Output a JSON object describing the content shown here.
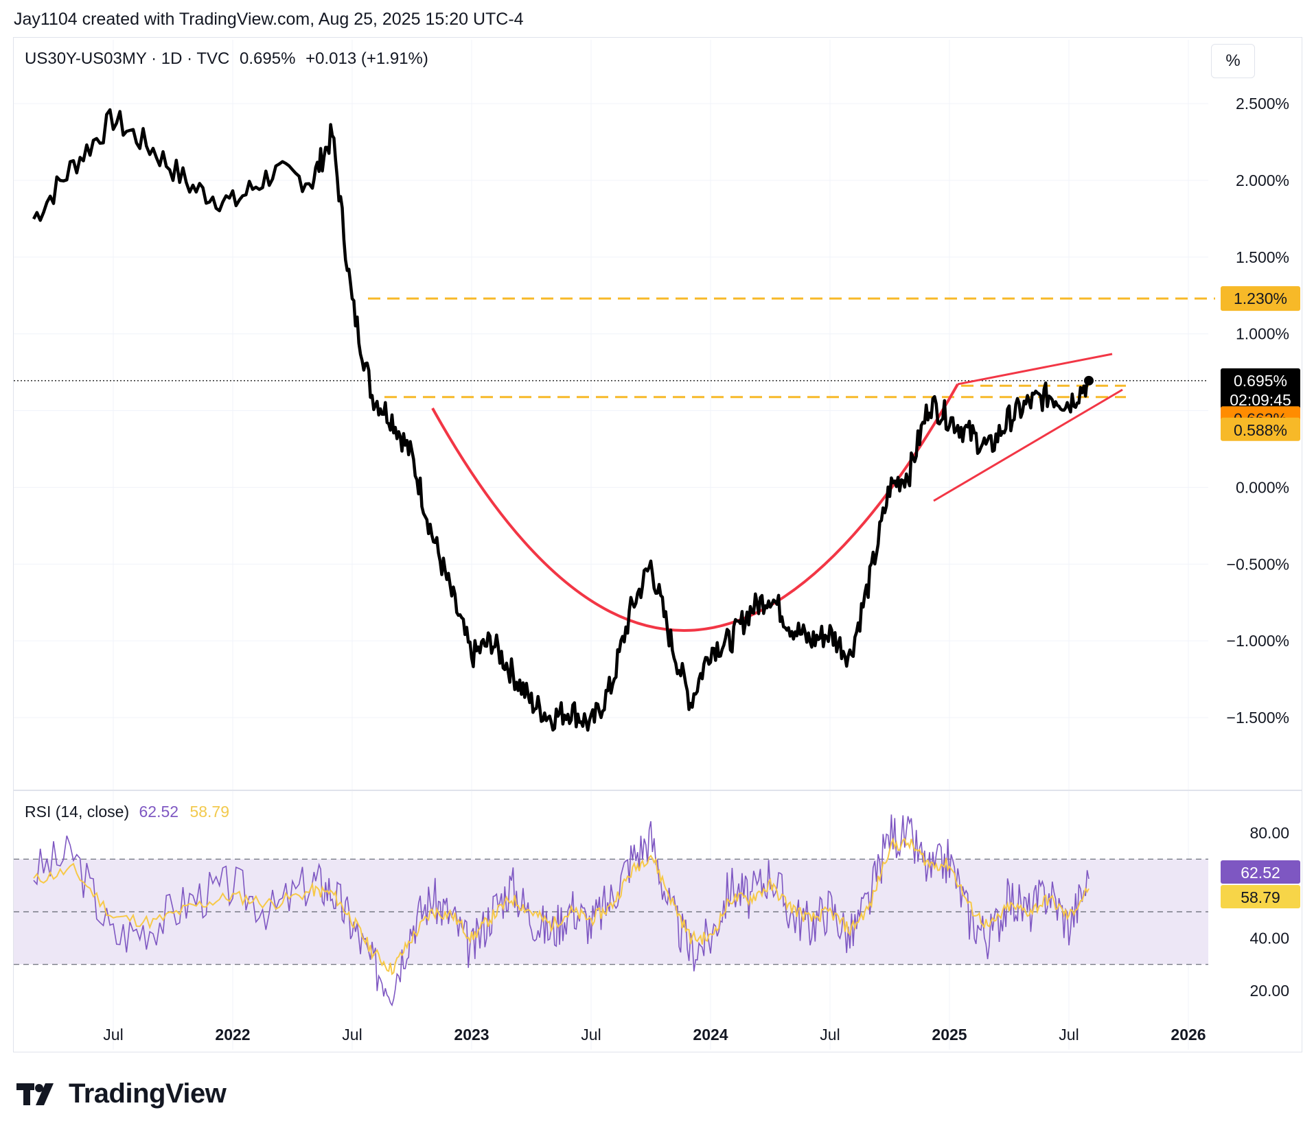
{
  "header": {
    "attribution": "Jay1104 created with TradingView.com, Aug 25, 2025 15:20 UTC-4"
  },
  "legend": {
    "symbol": "US30Y-US03MY · 1D · TVC",
    "last": "0.695%",
    "change": "+0.013 (+1.91%)"
  },
  "scale_button": "%",
  "rsi_legend": {
    "label": "RSI (14, close)",
    "rsi": "62.52",
    "ma": "58.79"
  },
  "logo_text": "TradingView",
  "colors": {
    "price_line": "#000000",
    "trend_red": "#f23645",
    "dashed_level": "#f7b928",
    "rsi_line": "#7e57c2",
    "rsi_ma": "#f7c948",
    "rsi_band": "#ede7f6",
    "badge_black": "#000000",
    "badge_orange": "#ff8c00",
    "badge_yellow": "#f7b928",
    "badge_purple": "#7e57c2"
  },
  "chart_data": [
    {
      "type": "line",
      "title": "US30Y-US03MY · 1D · TVC",
      "xlabel": "",
      "ylabel": "",
      "x_ticks": [
        "Jul",
        "2022",
        "Jul",
        "2023",
        "Jul",
        "2024",
        "Jul",
        "2025",
        "Jul",
        "2026"
      ],
      "y_ticks": [
        "2.500%",
        "2.000%",
        "1.500%",
        "1.000%",
        "0.000%",
        "−0.500%",
        "−1.000%",
        "−1.500%"
      ],
      "ylim": [
        -1.9,
        2.8
      ],
      "x": [
        "2021-03",
        "2021-05",
        "2021-07",
        "2021-09",
        "2021-11",
        "2022-01",
        "2022-03",
        "2022-05",
        "2022-06",
        "2022-07",
        "2022-08",
        "2022-09",
        "2022-10",
        "2022-11",
        "2022-12",
        "2023-01",
        "2023-02",
        "2023-03",
        "2023-04",
        "2023-05",
        "2023-06",
        "2023-07",
        "2023-08",
        "2023-09",
        "2023-10",
        "2023-11",
        "2023-12",
        "2024-01",
        "2024-02",
        "2024-03",
        "2024-04",
        "2024-05",
        "2024-06",
        "2024-07",
        "2024-08",
        "2024-09",
        "2024-10",
        "2024-11",
        "2024-12",
        "2025-01",
        "2025-02",
        "2025-03",
        "2025-04",
        "2025-05",
        "2025-06",
        "2025-07",
        "2025-08"
      ],
      "series": [
        {
          "values": [
            1.75,
            2.1,
            2.4,
            2.2,
            1.95,
            1.85,
            2.05,
            2.0,
            2.3,
            1.2,
            0.6,
            0.45,
            0.2,
            -0.3,
            -0.7,
            -1.1,
            -1.0,
            -1.2,
            -1.4,
            -1.5,
            -1.45,
            -1.55,
            -1.3,
            -0.8,
            -0.5,
            -1.0,
            -1.4,
            -1.05,
            -1.0,
            -0.8,
            -0.7,
            -0.9,
            -1.0,
            -0.95,
            -1.1,
            -0.6,
            0.0,
            0.1,
            0.55,
            0.45,
            0.35,
            0.25,
            0.45,
            0.55,
            0.6,
            0.55,
            0.695
          ]
        }
      ],
      "levels": [
        "1.230%",
        "0.662%",
        "0.588%"
      ],
      "last_value_badge": "0.695%",
      "countdown": "02:09:45"
    },
    {
      "type": "line",
      "title": "RSI (14, close)",
      "y_ticks": [
        "80.00",
        "40.00",
        "20.00"
      ],
      "ylim": [
        15,
        85
      ],
      "bands": [
        70,
        50,
        30
      ],
      "x": [
        "2021-03",
        "2021-05",
        "2021-07",
        "2021-09",
        "2021-11",
        "2022-01",
        "2022-03",
        "2022-05",
        "2022-06",
        "2022-07",
        "2022-08",
        "2022-09",
        "2022-10",
        "2022-11",
        "2022-12",
        "2023-01",
        "2023-02",
        "2023-03",
        "2023-04",
        "2023-05",
        "2023-06",
        "2023-07",
        "2023-08",
        "2023-09",
        "2023-10",
        "2023-11",
        "2023-12",
        "2024-01",
        "2024-02",
        "2024-03",
        "2024-04",
        "2024-05",
        "2024-06",
        "2024-07",
        "2024-08",
        "2024-09",
        "2024-10",
        "2024-11",
        "2024-12",
        "2025-01",
        "2025-02",
        "2025-03",
        "2025-04",
        "2025-05",
        "2025-06",
        "2025-07",
        "2025-08"
      ],
      "series": [
        {
          "name": "RSI",
          "values": [
            65,
            72,
            40,
            45,
            55,
            60,
            50,
            62,
            58,
            45,
            30,
            22,
            45,
            55,
            48,
            35,
            50,
            60,
            48,
            42,
            52,
            45,
            55,
            70,
            78,
            50,
            35,
            40,
            60,
            55,
            65,
            50,
            45,
            52,
            40,
            55,
            80,
            78,
            65,
            70,
            48,
            40,
            55,
            50,
            58,
            45,
            62.52
          ]
        },
        {
          "name": "MA",
          "values": [
            62,
            66,
            48,
            46,
            52,
            56,
            53,
            58,
            57,
            47,
            35,
            28,
            40,
            50,
            49,
            40,
            48,
            55,
            50,
            45,
            50,
            47,
            52,
            65,
            72,
            55,
            40,
            40,
            55,
            55,
            60,
            52,
            47,
            50,
            43,
            52,
            75,
            76,
            68,
            68,
            52,
            44,
            52,
            50,
            55,
            48,
            58.79
          ]
        }
      ],
      "last_rsi_badge": "62.52",
      "last_ma_badge": "58.79"
    }
  ]
}
